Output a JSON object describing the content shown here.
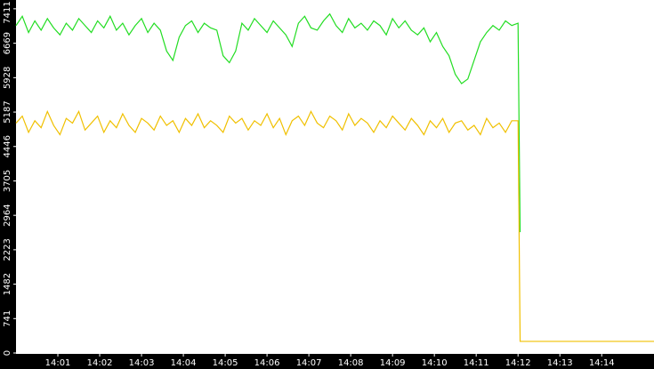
{
  "chart_data": {
    "type": "line",
    "x": [
      0,
      0.15,
      0.3,
      0.45,
      0.6,
      0.75,
      0.9,
      1.05,
      1.2,
      1.35,
      1.5,
      1.65,
      1.8,
      1.95,
      2.1,
      2.25,
      2.4,
      2.55,
      2.7,
      2.85,
      3,
      3.15,
      3.3,
      3.45,
      3.6,
      3.75,
      3.9,
      4.05,
      4.2,
      4.35,
      4.5,
      4.65,
      4.8,
      4.95,
      5.1,
      5.25,
      5.4,
      5.55,
      5.7,
      5.85,
      6,
      6.15,
      6.3,
      6.45,
      6.6,
      6.75,
      6.9,
      7.05,
      7.2,
      7.35,
      7.5,
      7.65,
      7.8,
      7.95,
      8.1,
      8.25,
      8.4,
      8.55,
      8.7,
      8.85,
      9,
      9.15,
      9.3,
      9.45,
      9.6,
      9.75,
      9.9,
      10.05,
      10.2,
      10.35,
      10.5,
      10.65,
      10.8,
      10.95,
      11.1,
      11.25,
      11.4,
      11.55,
      11.7,
      11.85,
      12,
      12.05,
      15.25
    ],
    "series": [
      {
        "color": "#22dd22",
        "values": [
          7050,
          7250,
          6900,
          7150,
          6950,
          7200,
          7000,
          6850,
          7100,
          6950,
          7200,
          7050,
          6900,
          7150,
          7000,
          7250,
          6950,
          7100,
          6850,
          7050,
          7200,
          6900,
          7100,
          6950,
          6500,
          6300,
          6800,
          7050,
          7150,
          6900,
          7100,
          7000,
          6950,
          6400,
          6250,
          6500,
          7100,
          6950,
          7200,
          7050,
          6900,
          7150,
          7000,
          6850,
          6600,
          7100,
          7250,
          7000,
          6950,
          7150,
          7300,
          7050,
          6900,
          7200,
          7000,
          7100,
          6950,
          7150,
          7050,
          6850,
          7200,
          7000,
          7150,
          6950,
          6850,
          7000,
          6700,
          6900,
          6600,
          6400,
          6000,
          5800,
          5900,
          6300,
          6700,
          6900,
          7050,
          6950,
          7150,
          7050,
          7100,
          2600,
          null
        ]
      },
      {
        "color": "#f0c000",
        "values": [
          4950,
          5100,
          4750,
          5000,
          4850,
          5200,
          4900,
          4700,
          5050,
          4950,
          5200,
          4800,
          4950,
          5100,
          4750,
          5000,
          4850,
          5150,
          4900,
          4750,
          5050,
          4950,
          4800,
          5100,
          4900,
          5000,
          4750,
          5050,
          4900,
          5150,
          4850,
          5000,
          4900,
          4750,
          5100,
          4950,
          5050,
          4800,
          5000,
          4900,
          5150,
          4850,
          5050,
          4700,
          5000,
          5100,
          4900,
          5200,
          4950,
          4850,
          5100,
          5000,
          4800,
          5150,
          4900,
          5050,
          4950,
          4750,
          5000,
          4850,
          5100,
          4950,
          4800,
          5050,
          4900,
          4700,
          5000,
          4850,
          5050,
          4750,
          4950,
          5000,
          4800,
          4900,
          4700,
          5050,
          4850,
          4950,
          4750,
          5000,
          5000,
          250,
          250
        ]
      }
    ],
    "xlim": [
      0,
      15.25
    ],
    "xticks": [
      {
        "value": 1,
        "label": "14:01"
      },
      {
        "value": 2,
        "label": "14:02"
      },
      {
        "value": 3,
        "label": "14:03"
      },
      {
        "value": 4,
        "label": "14:04"
      },
      {
        "value": 5,
        "label": "14:05"
      },
      {
        "value": 6,
        "label": "14:06"
      },
      {
        "value": 7,
        "label": "14:07"
      },
      {
        "value": 8,
        "label": "14:08"
      },
      {
        "value": 9,
        "label": "14:09"
      },
      {
        "value": 10,
        "label": "14:10"
      },
      {
        "value": 11,
        "label": "14:11"
      },
      {
        "value": 12,
        "label": "14:12"
      },
      {
        "value": 13,
        "label": "14:13"
      },
      {
        "value": 14,
        "label": "14:14"
      }
    ],
    "ylim": [
      0,
      7600
    ],
    "yticks": [
      0,
      741,
      1482,
      2223,
      2964,
      3705,
      4446,
      5187,
      5928,
      6669,
      7411
    ]
  }
}
